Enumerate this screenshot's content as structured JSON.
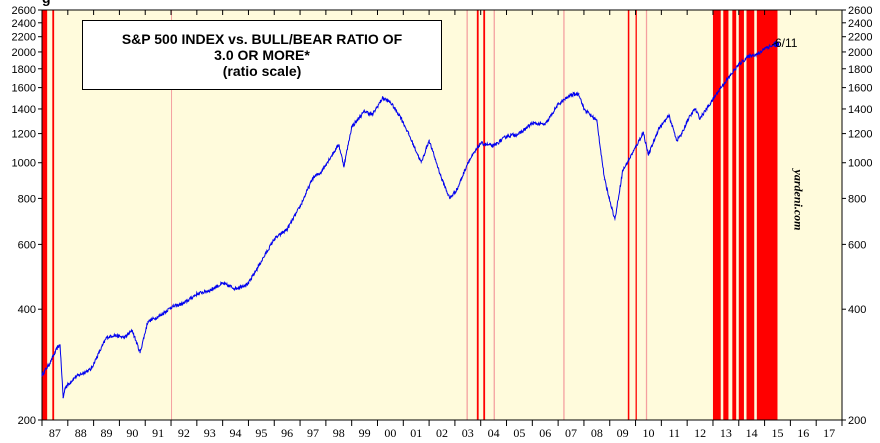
{
  "chart_data": {
    "type": "line",
    "title_lines": [
      "S&P 500 INDEX vs. BULL/BEAR RATIO OF",
      "3.0 OR MORE*",
      "(ratio scale)"
    ],
    "top_left_fragment": "g",
    "y_scale": "log",
    "ylim": [
      200,
      2600
    ],
    "y_ticks": [
      200,
      400,
      600,
      800,
      1000,
      1200,
      1400,
      1600,
      1800,
      2000,
      2200,
      2400,
      2600
    ],
    "xlim": [
      1987.0,
      2018.0
    ],
    "x_ticks": [
      "87",
      "88",
      "89",
      "90",
      "91",
      "92",
      "93",
      "94",
      "95",
      "96",
      "97",
      "98",
      "99",
      "00",
      "01",
      "02",
      "03",
      "04",
      "05",
      "06",
      "07",
      "08",
      "09",
      "10",
      "11",
      "12",
      "13",
      "14",
      "15",
      "16",
      "17"
    ],
    "last_label": "6/11",
    "watermark": "yardeni.com",
    "series": [
      {
        "name": "S&P 500 Index",
        "color": "#0000ee",
        "points": [
          [
            1987.0,
            265
          ],
          [
            1987.3,
            285
          ],
          [
            1987.6,
            315
          ],
          [
            1987.7,
            320
          ],
          [
            1987.82,
            230
          ],
          [
            1987.9,
            245
          ],
          [
            1988.3,
            262
          ],
          [
            1988.9,
            275
          ],
          [
            1989.5,
            335
          ],
          [
            1989.8,
            340
          ],
          [
            1990.2,
            335
          ],
          [
            1990.5,
            350
          ],
          [
            1990.8,
            305
          ],
          [
            1991.1,
            370
          ],
          [
            1991.6,
            385
          ],
          [
            1992.0,
            405
          ],
          [
            1992.5,
            415
          ],
          [
            1993.0,
            440
          ],
          [
            1993.5,
            450
          ],
          [
            1994.0,
            470
          ],
          [
            1994.5,
            455
          ],
          [
            1995.0,
            470
          ],
          [
            1995.5,
            540
          ],
          [
            1996.0,
            620
          ],
          [
            1996.5,
            660
          ],
          [
            1997.0,
            760
          ],
          [
            1997.5,
            910
          ],
          [
            1997.8,
            940
          ],
          [
            1998.0,
            990
          ],
          [
            1998.5,
            1120
          ],
          [
            1998.7,
            980
          ],
          [
            1999.0,
            1250
          ],
          [
            1999.5,
            1380
          ],
          [
            1999.8,
            1350
          ],
          [
            2000.2,
            1500
          ],
          [
            2000.5,
            1460
          ],
          [
            2000.9,
            1330
          ],
          [
            2001.2,
            1200
          ],
          [
            2001.7,
            1000
          ],
          [
            2002.0,
            1150
          ],
          [
            2002.5,
            900
          ],
          [
            2002.8,
            800
          ],
          [
            2003.1,
            850
          ],
          [
            2003.5,
            1000
          ],
          [
            2004.0,
            1130
          ],
          [
            2004.5,
            1110
          ],
          [
            2005.0,
            1180
          ],
          [
            2005.5,
            1200
          ],
          [
            2006.0,
            1280
          ],
          [
            2006.5,
            1270
          ],
          [
            2007.0,
            1440
          ],
          [
            2007.5,
            1530
          ],
          [
            2007.8,
            1540
          ],
          [
            2008.0,
            1400
          ],
          [
            2008.5,
            1300
          ],
          [
            2008.8,
            900
          ],
          [
            2009.2,
            700
          ],
          [
            2009.5,
            950
          ],
          [
            2010.0,
            1100
          ],
          [
            2010.3,
            1210
          ],
          [
            2010.5,
            1050
          ],
          [
            2010.9,
            1240
          ],
          [
            2011.3,
            1340
          ],
          [
            2011.6,
            1150
          ],
          [
            2011.8,
            1200
          ],
          [
            2012.0,
            1300
          ],
          [
            2012.3,
            1400
          ],
          [
            2012.5,
            1320
          ],
          [
            2012.9,
            1450
          ],
          [
            2013.3,
            1600
          ],
          [
            2013.6,
            1700
          ],
          [
            2014.0,
            1850
          ],
          [
            2014.4,
            1950
          ],
          [
            2014.8,
            1980
          ],
          [
            2015.0,
            2050
          ],
          [
            2015.3,
            2080
          ],
          [
            2015.45,
            2100
          ]
        ]
      }
    ],
    "bull_bear_periods": [
      {
        "start": 1987.0,
        "end": 1987.2,
        "intensity": "strong"
      },
      {
        "start": 1987.4,
        "end": 1987.47,
        "intensity": "strong"
      },
      {
        "start": 1992.0,
        "end": 1992.03,
        "intensity": "light"
      },
      {
        "start": 2003.45,
        "end": 2003.5,
        "intensity": "light"
      },
      {
        "start": 2003.85,
        "end": 2003.92,
        "intensity": "strong"
      },
      {
        "start": 2004.1,
        "end": 2004.17,
        "intensity": "strong"
      },
      {
        "start": 2004.5,
        "end": 2004.55,
        "intensity": "light"
      },
      {
        "start": 2007.2,
        "end": 2007.25,
        "intensity": "light"
      },
      {
        "start": 2009.7,
        "end": 2009.76,
        "intensity": "strong"
      },
      {
        "start": 2010.0,
        "end": 2010.05,
        "intensity": "strong"
      },
      {
        "start": 2010.4,
        "end": 2010.45,
        "intensity": "light"
      },
      {
        "start": 2013.0,
        "end": 2013.3,
        "intensity": "strong"
      },
      {
        "start": 2013.4,
        "end": 2013.6,
        "intensity": "strong"
      },
      {
        "start": 2013.75,
        "end": 2013.9,
        "intensity": "strong"
      },
      {
        "start": 2014.0,
        "end": 2014.2,
        "intensity": "strong"
      },
      {
        "start": 2014.3,
        "end": 2014.6,
        "intensity": "strong"
      },
      {
        "start": 2014.7,
        "end": 2015.5,
        "intensity": "strong"
      }
    ],
    "colors": {
      "background": "#fffbdc",
      "period_strong": "#ff0000",
      "period_light": "#f4a0a0",
      "line": "#0000ee"
    }
  }
}
